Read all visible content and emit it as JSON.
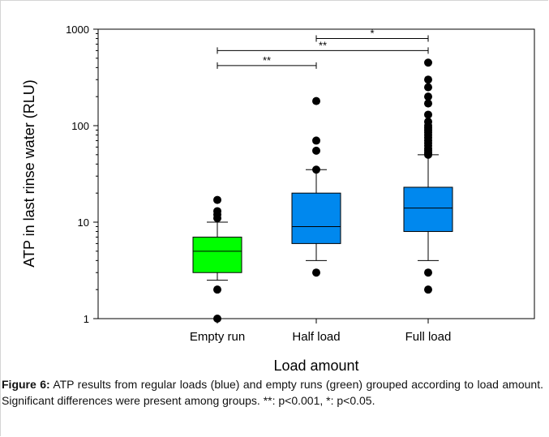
{
  "chart_data": {
    "type": "box",
    "scale": "log",
    "ylim": [
      1,
      1000
    ],
    "xlabel": "Load amount",
    "ylabel": "ATP in last rinse water (RLU)",
    "y_ticks": [
      {
        "value": 1,
        "label": "1"
      },
      {
        "value": 10,
        "label": "10"
      },
      {
        "value": 100,
        "label": "100"
      },
      {
        "value": 1000,
        "label": "1000"
      }
    ],
    "categories": [
      "Empty run",
      "Half load",
      "Full load"
    ],
    "boxes": [
      {
        "category": "Empty run",
        "color": "#00ff00",
        "whisker_low": 2.5,
        "q1": 3,
        "median": 5,
        "q3": 7,
        "whisker_high": 10,
        "outliers": [
          1,
          2,
          11,
          12,
          13,
          17
        ]
      },
      {
        "category": "Half load",
        "color": "#0088ee",
        "whisker_low": 4,
        "q1": 6,
        "median": 9,
        "q3": 20,
        "whisker_high": 35,
        "outliers": [
          3,
          35,
          55,
          70,
          180
        ]
      },
      {
        "category": "Full load",
        "color": "#0088ee",
        "whisker_low": 4,
        "q1": 8,
        "median": 14,
        "q3": 23,
        "whisker_high": 50,
        "outliers": [
          2,
          3,
          50,
          52,
          55,
          58,
          62,
          66,
          70,
          75,
          80,
          85,
          90,
          95,
          100,
          110,
          130,
          170,
          200,
          250,
          300,
          450
        ]
      }
    ],
    "significance": [
      {
        "from": 1,
        "to": 2,
        "y": 800,
        "label": "*"
      },
      {
        "from": 0,
        "to": 2,
        "y": 600,
        "label": "**"
      },
      {
        "from": 0,
        "to": 1,
        "y": 420,
        "label": "**"
      }
    ]
  },
  "caption": {
    "bold": "Figure 6:",
    "text": " ATP results from regular loads (blue) and empty runs (green) grouped according to load amount. Significant differences were present among groups. **: p<0.001, *: p<0.05."
  }
}
